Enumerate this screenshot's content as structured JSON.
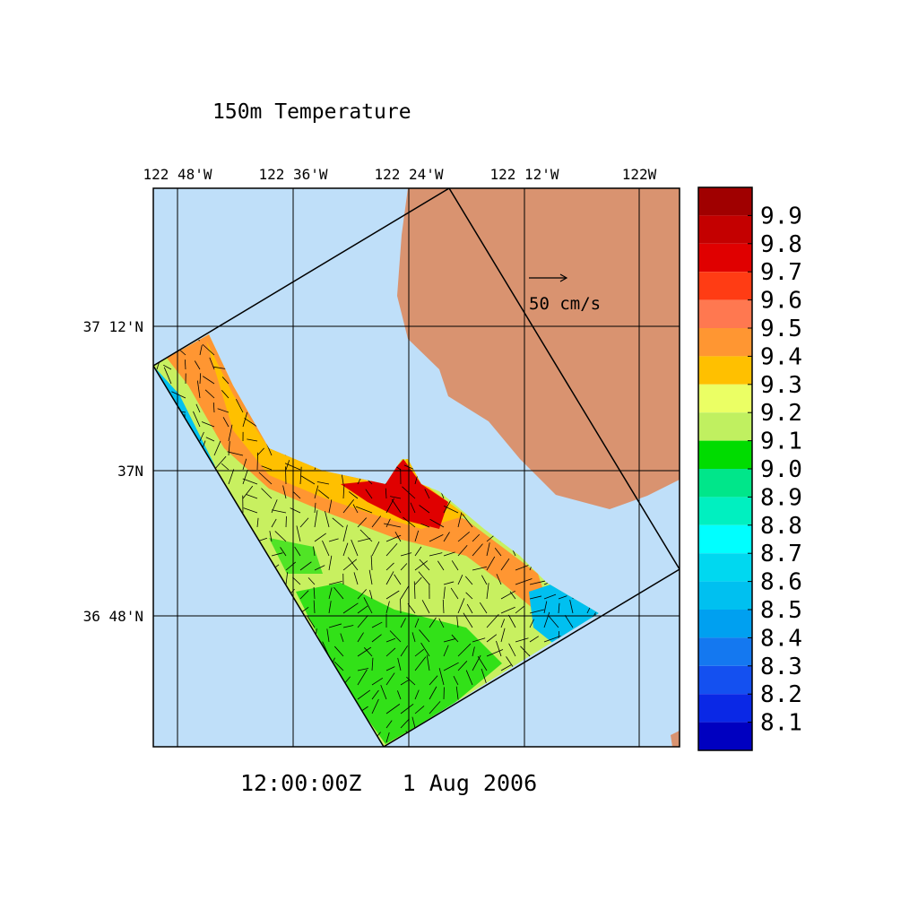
{
  "title": "150m Temperature",
  "longitude_labels": [
    "122 48'W",
    "122 36'W",
    "122 24'W",
    "122 12'W",
    "122W"
  ],
  "latitude_labels": [
    "37 12'N",
    "37N",
    "36 48'N"
  ],
  "vector_scale": "50 cm/s",
  "time": "12:00:00Z   1 Aug 2006",
  "colorbar": {
    "levels": [
      9.9,
      9.8,
      9.7,
      9.6,
      9.5,
      9.4,
      9.3,
      9.2,
      9.1,
      {
        "value": 9,
        "label": "9.0"
      },
      8.9,
      8.8,
      8.7,
      8.6,
      8.5,
      8.4,
      8.3,
      8.2,
      8.1
    ],
    "colors": [
      "#a00000",
      "#c40000",
      "#e00000",
      "#ff3c14",
      "#ff7850",
      "#ff9632",
      "#ffc000",
      "#ebff64",
      "#c0f060",
      "#00dc00",
      "#00e68a",
      "#00f0c0",
      "#00ffff",
      "#00d8f0",
      "#00c0f0",
      "#00a0f0",
      "#1478f0",
      "#1450f0",
      "#0a28e6",
      "#0000c0"
    ]
  }
}
